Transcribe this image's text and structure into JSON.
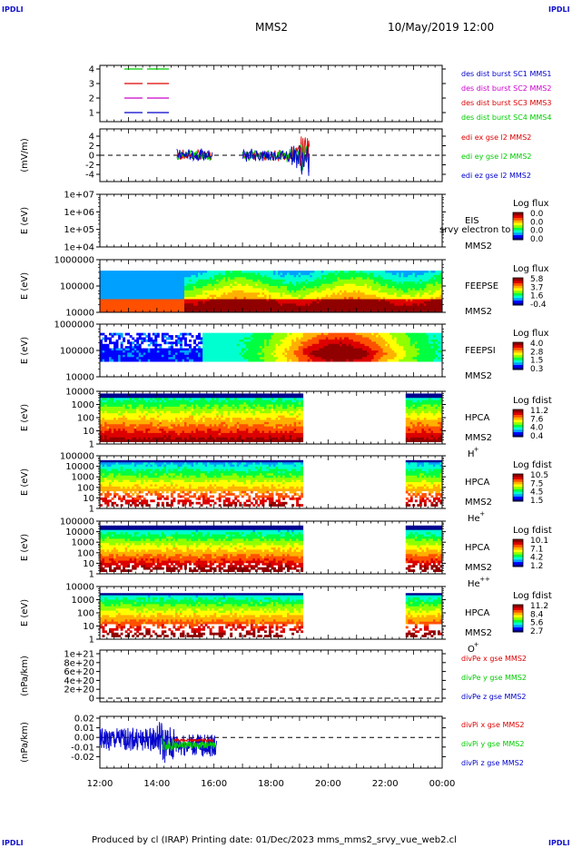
{
  "header": {
    "spacecraft": "MMS2",
    "datetime": "10/May/2019 12:00"
  },
  "corner_logo": "IPDLI",
  "footer": {
    "text": "Produced by cl (IRAP)   Printing date: 01/Dec/2023   mms_mms2_srvy_vue_web2.cl"
  },
  "time_axis": {
    "ticks": [
      "12:00",
      "14:00",
      "16:00",
      "18:00",
      "20:00",
      "22:00",
      "00:00"
    ]
  },
  "colors": {
    "red": "#dd0000",
    "green": "#00cc00",
    "blue": "#0000cc",
    "magenta": "#cc00cc",
    "colormap": [
      "#000090",
      "#0000ff",
      "#00a0ff",
      "#00ffd0",
      "#00ff40",
      "#90ff00",
      "#ffff00",
      "#ffb000",
      "#ff5000",
      "#dd0000",
      "#900000"
    ]
  },
  "panels": [
    {
      "id": "burst",
      "ylabel": "",
      "yticks": [
        "4",
        "3",
        "2",
        "1"
      ],
      "legend": [
        {
          "text": "des dist burst SC1 MMS1",
          "color": "#0000cc"
        },
        {
          "text": "des dist burst SC2 MMS2",
          "color": "#cc00cc"
        },
        {
          "text": "des dist burst SC3 MMS3",
          "color": "#dd0000"
        },
        {
          "text": "des dist burst SC4 MMS4",
          "color": "#00cc00"
        }
      ]
    },
    {
      "id": "efield",
      "ylabel": "(mV/m)",
      "yticks": [
        "4",
        "2",
        "0",
        "-2",
        "-4"
      ],
      "legend": [
        {
          "text": "edi ex gse l2 MMS2",
          "color": "#dd0000"
        },
        {
          "text": "edi ey gse l2 MMS2",
          "color": "#00cc00"
        },
        {
          "text": "edi ez gse l2 MMS2",
          "color": "#0000cc"
        }
      ]
    },
    {
      "id": "eis",
      "ylabel": "E (eV)",
      "yticks": [
        "1e+07",
        "1e+06",
        "1e+05",
        "1e+04"
      ],
      "species": [
        "EIS",
        "MMS2"
      ],
      "overlay_text": "srvy electron to",
      "cbar_title": "Log flux",
      "cbar_ticks": [
        "0.0",
        "0.0",
        "0.0",
        "0.0"
      ]
    },
    {
      "id": "feepse",
      "ylabel": "E (eV)",
      "yticks": [
        "1000000",
        "100000",
        "10000"
      ],
      "species": [
        "FEEPSE",
        "MMS2"
      ],
      "cbar_title": "Log flux",
      "cbar_ticks": [
        "5.8",
        "3.7",
        "1.6",
        "-0.4"
      ]
    },
    {
      "id": "feepsi",
      "ylabel": "E (eV)",
      "yticks": [
        "1000000",
        "100000",
        "10000"
      ],
      "species": [
        "FEEPSI",
        "MMS2"
      ],
      "cbar_title": "Log flux",
      "cbar_ticks": [
        "4.0",
        "2.8",
        "1.5",
        "0.3"
      ]
    },
    {
      "id": "hpca_h",
      "ylabel": "E (eV)",
      "yticks": [
        "10000",
        "1000",
        "100",
        "10",
        "1"
      ],
      "species": [
        "HPCA",
        "MMS2",
        "H",
        "+"
      ],
      "cbar_title": "Log fdist",
      "cbar_ticks": [
        "11.2",
        "7.6",
        "4.0",
        "0.4"
      ]
    },
    {
      "id": "hpca_he",
      "ylabel": "E (eV)",
      "yticks": [
        "100000",
        "10000",
        "1000",
        "100",
        "10",
        "1"
      ],
      "species": [
        "HPCA",
        "MMS2",
        "He",
        "+"
      ],
      "cbar_title": "Log fdist",
      "cbar_ticks": [
        "10.5",
        "7.5",
        "4.5",
        "1.5"
      ]
    },
    {
      "id": "hpca_hepp",
      "ylabel": "E (eV)",
      "yticks": [
        "100000",
        "10000",
        "1000",
        "100",
        "10",
        "1"
      ],
      "species": [
        "HPCA",
        "MMS2",
        "He",
        "++"
      ],
      "cbar_title": "Log fdist",
      "cbar_ticks": [
        "10.1",
        "7.1",
        "4.2",
        "1.2"
      ]
    },
    {
      "id": "hpca_o",
      "ylabel": "E (eV)",
      "yticks": [
        "10000",
        "1000",
        "100",
        "10",
        "1"
      ],
      "species": [
        "HPCA",
        "MMS2",
        "O",
        "+"
      ],
      "cbar_title": "Log fdist",
      "cbar_ticks": [
        "11.2",
        "8.4",
        "5.6",
        "2.7"
      ]
    },
    {
      "id": "divpe",
      "ylabel": "(nPa/km)",
      "yticks": [
        "1e+21",
        "8e+20",
        "6e+20",
        "4e+20",
        "2e+20",
        "0"
      ],
      "legend": [
        {
          "text": "divPe x gse MMS2",
          "color": "#dd0000"
        },
        {
          "text": "divPe y gse MMS2",
          "color": "#00cc00"
        },
        {
          "text": "divPe z gse MMS2",
          "color": "#0000cc"
        }
      ]
    },
    {
      "id": "divpi",
      "ylabel": "(nPa/km)",
      "yticks": [
        "0.02",
        "0.01",
        "0.00",
        "-0.01",
        "-0.02"
      ],
      "legend": [
        {
          "text": "divPi x gse MMS2",
          "color": "#dd0000"
        },
        {
          "text": "divPi y gse MMS2",
          "color": "#00cc00"
        },
        {
          "text": "divPi z gse MMS2",
          "color": "#0000cc"
        }
      ]
    }
  ],
  "chart_data": [
    {
      "type": "line",
      "ylabel": "",
      "ylim": [
        1,
        4
      ],
      "series": [
        {
          "name": "des dist burst SC4 MMS4",
          "y": 4,
          "segments": [
            [
              "12:55",
              "13:40"
            ]
          ]
        },
        {
          "name": "des dist burst SC3 MMS3",
          "y": 3,
          "segments": [
            [
              "12:55",
              "13:40"
            ]
          ]
        },
        {
          "name": "des dist burst SC2 MMS2",
          "y": 2,
          "segments": [
            [
              "12:55",
              "13:40"
            ]
          ]
        },
        {
          "name": "des dist burst SC1 MMS1",
          "y": 1,
          "segments": [
            [
              "12:55",
              "13:40"
            ]
          ]
        }
      ]
    },
    {
      "type": "line",
      "ylabel": "(mV/m)",
      "ylim": [
        -5,
        5
      ],
      "note_shown": "data intervals ~14:40-16:00 and ~17:00-19:20, values mostly within -2..2, rising to ~4 near 19:10",
      "series": [
        {
          "name": "edi ex gse l2 MMS2"
        },
        {
          "name": "edi ey gse l2 MMS2"
        },
        {
          "name": "edi ez gse l2 MMS2"
        }
      ]
    },
    {
      "type": "heatmap",
      "ylabel": "E (eV)",
      "ylim": [
        10000,
        10000000
      ],
      "yscale": "log",
      "colorbar": [
        0.0,
        0.0,
        0.0,
        0.0
      ]
    },
    {
      "type": "heatmap",
      "ylabel": "E (eV)",
      "ylim": [
        10000,
        1000000
      ],
      "yscale": "log",
      "colorbar": [
        -0.4,
        1.6,
        3.7,
        5.8
      ]
    },
    {
      "type": "heatmap",
      "ylabel": "E (eV)",
      "ylim": [
        10000,
        1000000
      ],
      "yscale": "log",
      "colorbar": [
        0.3,
        1.5,
        2.8,
        4.0
      ]
    },
    {
      "type": "heatmap",
      "ylabel": "E (eV)",
      "ylim": [
        1,
        30000
      ],
      "yscale": "log",
      "colorbar": [
        0.4,
        4.0,
        7.6,
        11.2
      ],
      "data_gaps": [
        [
          "19:10",
          "22:40"
        ]
      ]
    },
    {
      "type": "heatmap",
      "ylabel": "E (eV)",
      "ylim": [
        1,
        100000
      ],
      "yscale": "log",
      "colorbar": [
        1.5,
        4.5,
        7.5,
        10.5
      ],
      "data_gaps": [
        [
          "19:10",
          "22:40"
        ]
      ]
    },
    {
      "type": "heatmap",
      "ylabel": "E (eV)",
      "ylim": [
        1,
        100000
      ],
      "yscale": "log",
      "colorbar": [
        1.2,
        4.2,
        7.1,
        10.1
      ],
      "data_gaps": [
        [
          "19:10",
          "22:40"
        ]
      ]
    },
    {
      "type": "heatmap",
      "ylabel": "E (eV)",
      "ylim": [
        1,
        30000
      ],
      "yscale": "log",
      "colorbar": [
        2.7,
        5.6,
        8.4,
        11.2
      ],
      "data_gaps": [
        [
          "19:10",
          "22:40"
        ]
      ]
    },
    {
      "type": "line",
      "ylabel": "(nPa/km)",
      "ylim": [
        0,
        1.2e+21
      ],
      "series": [
        {
          "name": "divPe x gse MMS2"
        },
        {
          "name": "divPe y gse MMS2"
        },
        {
          "name": "divPe z gse MMS2"
        }
      ]
    },
    {
      "type": "line",
      "ylabel": "(nPa/km)",
      "ylim": [
        -0.03,
        0.02
      ],
      "note_shown": "data from 12:00 to ~16:05, values mostly between -0.02 and 0.005",
      "series": [
        {
          "name": "divPi x gse MMS2"
        },
        {
          "name": "divPi y gse MMS2"
        },
        {
          "name": "divPi z gse MMS2"
        }
      ]
    }
  ]
}
